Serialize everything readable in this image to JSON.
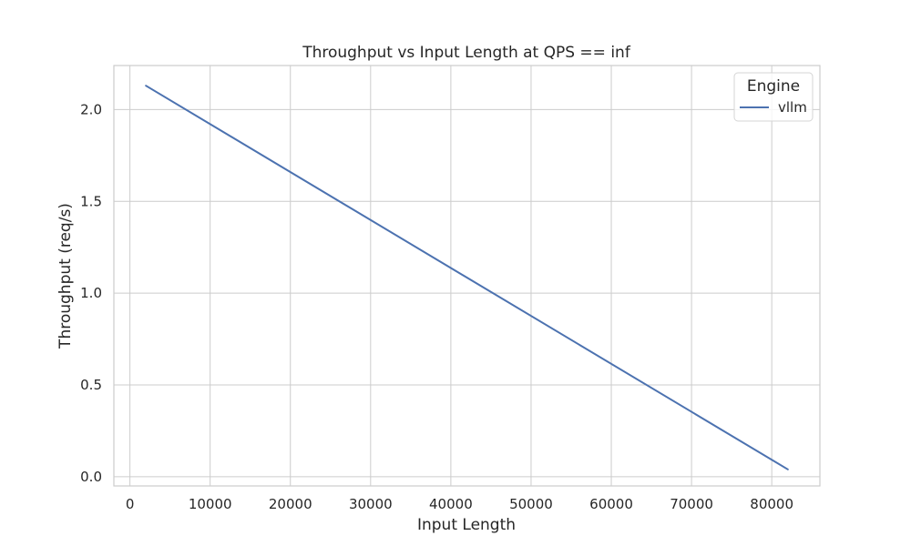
{
  "chart_data": {
    "type": "line",
    "title": "Throughput vs Input Length at QPS == inf",
    "xlabel": "Input Length",
    "ylabel": "Throughput (req/s)",
    "xlim": [
      -2000,
      86000
    ],
    "ylim": [
      -0.05,
      2.24
    ],
    "xticks": [
      0,
      10000,
      20000,
      30000,
      40000,
      50000,
      60000,
      70000,
      80000
    ],
    "yticks": [
      0.0,
      0.5,
      1.0,
      1.5,
      2.0
    ],
    "xtick_labels": [
      "0",
      "10000",
      "20000",
      "30000",
      "40000",
      "50000",
      "60000",
      "70000",
      "80000"
    ],
    "ytick_labels": [
      "0.0",
      "0.5",
      "1.0",
      "1.5",
      "2.0"
    ],
    "grid": true,
    "legend": {
      "title": "Engine",
      "placement": "top-right"
    },
    "series": [
      {
        "name": "vllm",
        "color": "#4c72b0",
        "x": [
          2000,
          82000
        ],
        "y": [
          2.13,
          0.04
        ]
      }
    ]
  }
}
